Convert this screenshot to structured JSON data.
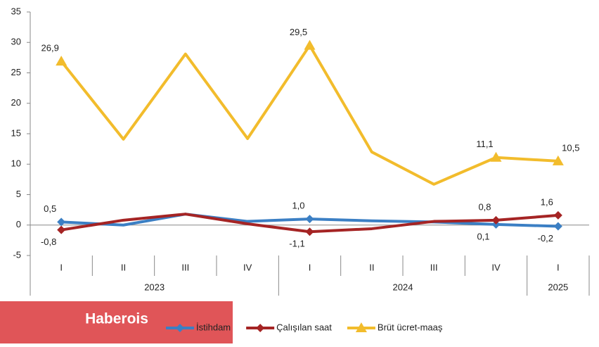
{
  "chart_data": {
    "type": "line",
    "categories": [
      "I",
      "II",
      "III",
      "IV",
      "I",
      "II",
      "III",
      "IV",
      "I"
    ],
    "group_labels": [
      "2023",
      "2024",
      "2025"
    ],
    "ylim": [
      -5,
      35
    ],
    "yticks": [
      -5,
      0,
      5,
      10,
      15,
      20,
      25,
      30,
      35
    ],
    "series": [
      {
        "name": "İstihdam",
        "color": "#3b7fc4",
        "marker": "diamond",
        "values": [
          0.5,
          0.0,
          1.8,
          0.6,
          1.0,
          0.7,
          0.5,
          0.1,
          -0.2
        ],
        "value_labels": [
          "0,5",
          null,
          null,
          null,
          "1,0",
          null,
          null,
          "0,1",
          "-0,2"
        ]
      },
      {
        "name": "Çalışılan saat",
        "color": "#a52424",
        "marker": "diamond",
        "values": [
          -0.8,
          0.8,
          1.8,
          0.2,
          -1.1,
          -0.6,
          0.6,
          0.8,
          1.6
        ],
        "value_labels": [
          "-0,8",
          null,
          null,
          null,
          "-1,1",
          null,
          null,
          "0,8",
          "1,6"
        ]
      },
      {
        "name": "Brüt ücret-maaş",
        "color": "#f2bc2c",
        "marker": "triangle",
        "values": [
          26.9,
          14.1,
          28.1,
          14.2,
          29.5,
          12.0,
          6.7,
          11.1,
          10.5
        ],
        "value_labels": [
          "26,9",
          null,
          null,
          null,
          "29,5",
          null,
          null,
          "11,1",
          "10,5"
        ]
      }
    ],
    "watermark": "Haberois"
  }
}
